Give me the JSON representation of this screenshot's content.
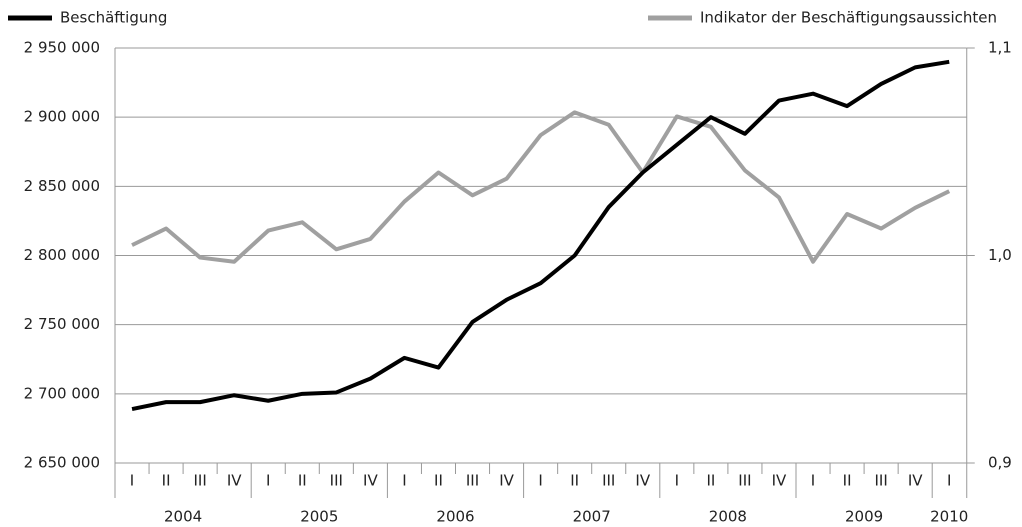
{
  "chart_data": {
    "type": "line",
    "groups": [
      {
        "year": "2004",
        "quarters": [
          "I",
          "II",
          "III",
          "IV"
        ]
      },
      {
        "year": "2005",
        "quarters": [
          "I",
          "II",
          "III",
          "IV"
        ]
      },
      {
        "year": "2006",
        "quarters": [
          "I",
          "II",
          "III",
          "IV"
        ]
      },
      {
        "year": "2007",
        "quarters": [
          "I",
          "II",
          "III",
          "IV"
        ]
      },
      {
        "year": "2008",
        "quarters": [
          "I",
          "II",
          "III",
          "IV"
        ]
      },
      {
        "year": "2009",
        "quarters": [
          "I",
          "II",
          "III",
          "IV"
        ]
      },
      {
        "year": "2010",
        "quarters": [
          "I"
        ]
      }
    ],
    "series": [
      {
        "name": "Beschäftigung",
        "color": "#000000",
        "values": [
          2689000,
          2694000,
          2694000,
          2699000,
          2695000,
          2700000,
          2701000,
          2711000,
          2726000,
          2719000,
          2752000,
          2768000,
          2780000,
          2800000,
          2835000,
          2860000,
          2880000,
          2900000,
          2888000,
          2912000,
          2917000,
          2908000,
          2924000,
          2936000,
          2940000
        ]
      },
      {
        "name": "Indikator der Beschäftigungsaussichten",
        "color": "#a0a0a0",
        "axis": "y2",
        "values": [
          1.005,
          1.013,
          0.999,
          0.997,
          1.012,
          1.016,
          1.003,
          1.008,
          1.026,
          1.04,
          1.029,
          1.037,
          1.058,
          1.069,
          1.063,
          1.04,
          1.067,
          1.062,
          1.041,
          1.028,
          0.997,
          1.02,
          1.013,
          1.023,
          1.031
        ]
      }
    ],
    "ylim": [
      2650000,
      2950000
    ],
    "yticks": [
      {
        "value": 2650000,
        "label": "2 650 000"
      },
      {
        "value": 2700000,
        "label": "2 700 000"
      },
      {
        "value": 2750000,
        "label": "2 750 000"
      },
      {
        "value": 2800000,
        "label": "2 800 000"
      },
      {
        "value": 2850000,
        "label": "2 850 000"
      },
      {
        "value": 2900000,
        "label": "2 900 000"
      },
      {
        "value": 2950000,
        "label": "2 950 000"
      }
    ],
    "y2lim": [
      0.9,
      1.1
    ],
    "y2ticks": [
      {
        "value": 0.9,
        "label": "0,9"
      },
      {
        "value": 1.0,
        "label": "1,0"
      },
      {
        "value": 1.1,
        "label": "1,1"
      }
    ],
    "grid": true
  }
}
